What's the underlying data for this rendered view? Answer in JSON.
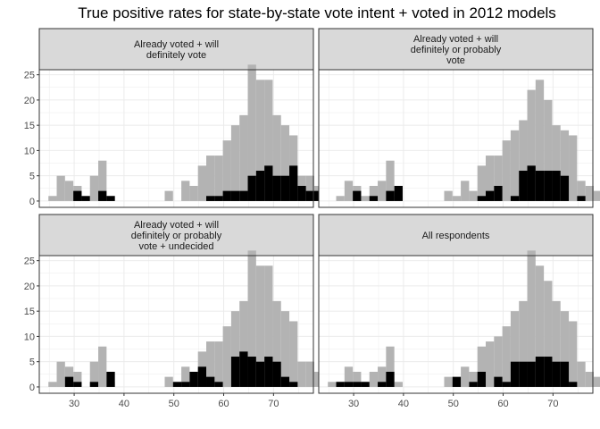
{
  "chart_data": {
    "type": "bar",
    "title": "True positive rates for state-by-state vote intent + voted in 2012 models",
    "xlabel": "",
    "ylabel": "",
    "xlim": [
      23,
      78
    ],
    "ylim": [
      -1.25,
      26
    ],
    "bin_width": 1.667,
    "x_ticks": [
      30,
      40,
      50,
      60,
      70
    ],
    "y_ticks": [
      0,
      5,
      10,
      15,
      20,
      25
    ],
    "colors": {
      "overall": "#b3b3b3",
      "subset": "#000000",
      "strip_bg": "#d9d9d9",
      "grid": "#ebebeb"
    },
    "panels": [
      {
        "strip": "Already voted + will\ndefinitely vote",
        "bin_left": 24.83,
        "overall": [
          1,
          5,
          4,
          3,
          0,
          5,
          8,
          1,
          0,
          0,
          0,
          0,
          0,
          0,
          2,
          0,
          4,
          3,
          7,
          9,
          9,
          12,
          15,
          17,
          27,
          24,
          24,
          17,
          15,
          13,
          5,
          5,
          3,
          0
        ],
        "subset": [
          0,
          0,
          0,
          2,
          1,
          0,
          2,
          1,
          0,
          0,
          0,
          0,
          0,
          0,
          0,
          0,
          0,
          0,
          0,
          1,
          1,
          2,
          2,
          2,
          5,
          6,
          7,
          5,
          5,
          7,
          3,
          2,
          2,
          2
        ]
      },
      {
        "strip": "Already voted + will\ndefinitely or probably\nvote",
        "bin_left": 24.83,
        "overall": [
          0,
          1,
          4,
          3,
          1,
          3,
          4,
          8,
          1,
          0,
          0,
          0,
          0,
          0,
          2,
          1,
          4,
          2,
          7,
          9,
          9,
          12,
          14,
          16,
          22,
          24,
          20,
          15,
          14,
          13,
          4,
          3,
          2,
          0
        ],
        "subset": [
          0,
          0,
          0,
          2,
          0,
          1,
          0,
          2,
          3,
          0,
          0,
          0,
          0,
          0,
          0,
          0,
          0,
          0,
          1,
          2,
          3,
          0,
          1,
          6,
          7,
          6,
          6,
          6,
          5,
          0,
          1,
          0,
          0,
          0
        ]
      },
      {
        "strip": "Already voted + will\ndefinitely or probably\nvote + undecided",
        "bin_left": 24.83,
        "overall": [
          1,
          5,
          4,
          3,
          0,
          5,
          8,
          1,
          0,
          0,
          0,
          0,
          0,
          0,
          2,
          0,
          4,
          3,
          7,
          9,
          9,
          12,
          15,
          17,
          27,
          24,
          24,
          17,
          15,
          13,
          5,
          5,
          3,
          0
        ],
        "subset": [
          0,
          0,
          2,
          1,
          0,
          1,
          0,
          3,
          0,
          0,
          0,
          0,
          0,
          0,
          0,
          1,
          1,
          3,
          4,
          2,
          1,
          0,
          6,
          7,
          6,
          5,
          6,
          5,
          2,
          1,
          0,
          0,
          0,
          0
        ]
      },
      {
        "strip": "All respondents",
        "bin_left": 24.83,
        "overall": [
          1,
          1,
          4,
          3,
          1,
          3,
          4,
          8,
          1,
          0,
          0,
          0,
          0,
          0,
          2,
          1,
          4,
          3,
          8,
          9,
          10,
          12,
          15,
          17,
          27,
          24,
          21,
          17,
          15,
          13,
          5,
          3,
          2,
          0
        ],
        "subset": [
          0,
          1,
          1,
          1,
          1,
          0,
          1,
          3,
          0,
          0,
          0,
          0,
          0,
          0,
          0,
          2,
          0,
          1,
          3,
          0,
          2,
          1,
          5,
          5,
          5,
          6,
          6,
          5,
          5,
          1,
          0,
          0,
          0,
          0
        ]
      }
    ]
  }
}
